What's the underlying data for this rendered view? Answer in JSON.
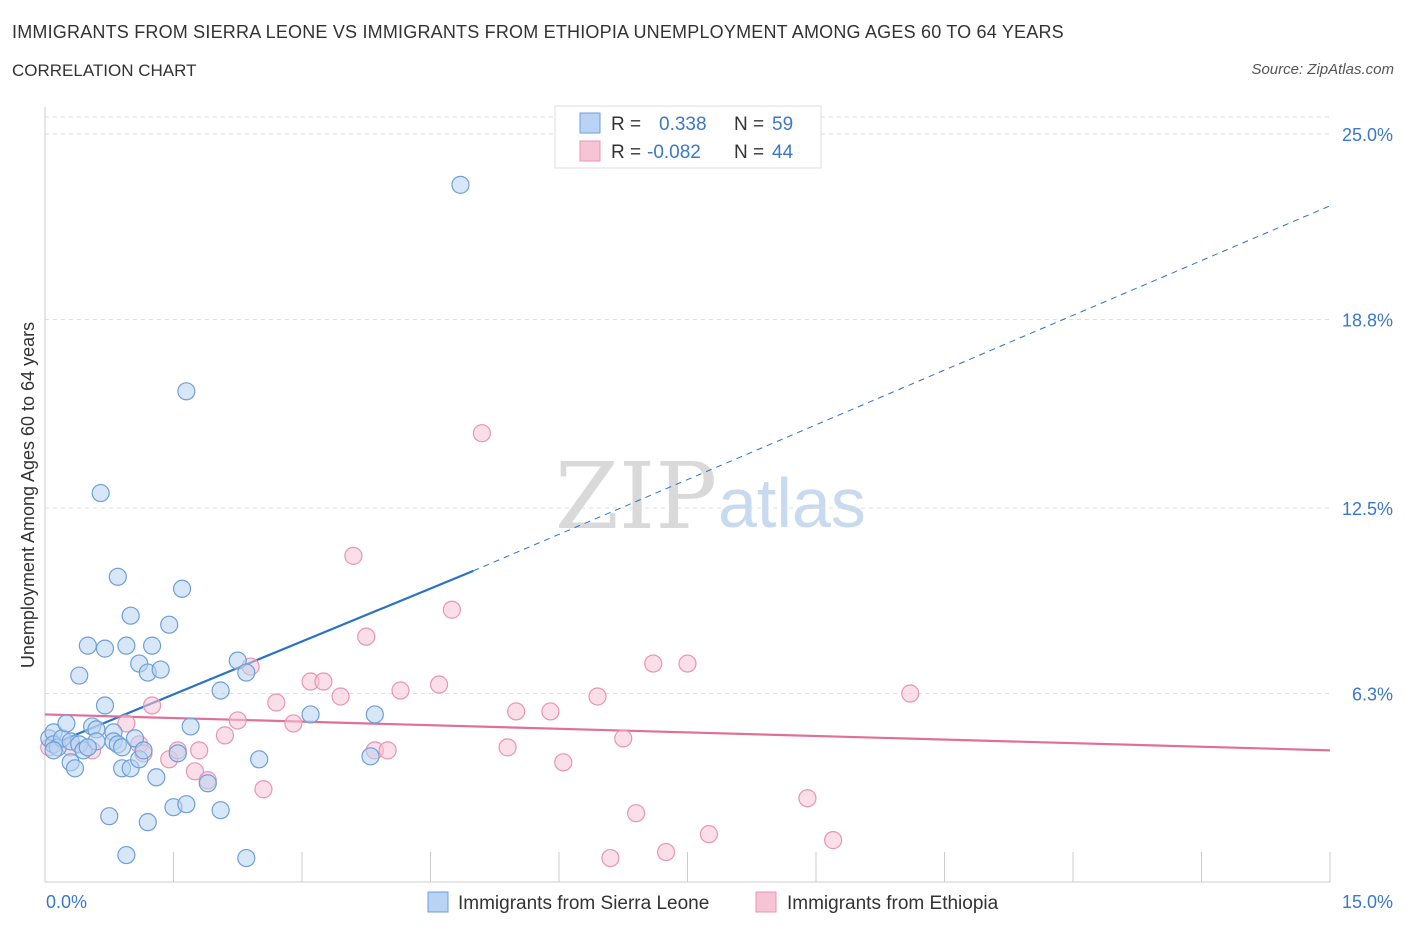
{
  "header": {
    "title": "IMMIGRANTS FROM SIERRA LEONE VS IMMIGRANTS FROM ETHIOPIA UNEMPLOYMENT AMONG AGES 60 TO 64 YEARS",
    "subtitle": "CORRELATION CHART",
    "source": "Source: ZipAtlas.com"
  },
  "watermark": {
    "zip": "ZIP",
    "atlas": "atlas"
  },
  "colors": {
    "blue_fill": "#b8d3f3",
    "blue_stroke": "#6d9fd8",
    "blue_line": "#2a72c9",
    "pink_fill": "#f6c4d5",
    "pink_stroke": "#e994b2",
    "pink_line": "#e07099",
    "grid": "#dddddd",
    "tick_text": "#3a78c9"
  },
  "legend": {
    "rows": [
      {
        "r_label": "R =",
        "r_value": "0.338",
        "n_label": "N =",
        "n_value": "59"
      },
      {
        "r_label": "R =",
        "r_value": "-0.082",
        "n_label": "N =",
        "n_value": "44"
      }
    ]
  },
  "chart_data": {
    "type": "scatter",
    "title": "IMMIGRANTS FROM SIERRA LEONE VS IMMIGRANTS FROM ETHIOPIA UNEMPLOYMENT AMONG AGES 60 TO 64 YEARS",
    "xlabel": "",
    "ylabel": "Unemployment Among Ages 60 to 64 years",
    "xlim": [
      0,
      15
    ],
    "ylim": [
      0,
      25
    ],
    "x_tick_labels": [
      {
        "value": 0,
        "label": "0.0%"
      },
      {
        "value": 15,
        "label": "15.0%"
      }
    ],
    "y_tick_labels": [
      {
        "value": 6.3,
        "label": "6.3%"
      },
      {
        "value": 12.5,
        "label": "12.5%"
      },
      {
        "value": 18.8,
        "label": "18.8%"
      },
      {
        "value": 25.0,
        "label": "25.0%"
      }
    ],
    "grid": true,
    "series": [
      {
        "name": "Immigrants from Sierra Leone",
        "color": "#b8d3f3",
        "trend": {
          "x0": 0.0,
          "y0": 4.5,
          "x1": 5.0,
          "y1": 10.4,
          "dash_to_x": 15.0,
          "dash_to_y": 22.6
        },
        "points": [
          [
            0.05,
            4.8
          ],
          [
            0.1,
            5.0
          ],
          [
            0.1,
            4.6
          ],
          [
            0.15,
            4.5
          ],
          [
            0.2,
            4.8
          ],
          [
            0.25,
            5.3
          ],
          [
            0.3,
            4.7
          ],
          [
            0.3,
            4.0
          ],
          [
            0.35,
            3.8
          ],
          [
            0.4,
            4.6
          ],
          [
            0.4,
            6.9
          ],
          [
            0.45,
            4.4
          ],
          [
            0.5,
            7.9
          ],
          [
            0.55,
            5.2
          ],
          [
            0.6,
            5.1
          ],
          [
            0.6,
            4.7
          ],
          [
            0.65,
            13.0
          ],
          [
            0.7,
            5.9
          ],
          [
            0.7,
            7.8
          ],
          [
            0.75,
            2.2
          ],
          [
            0.8,
            5.0
          ],
          [
            0.8,
            4.7
          ],
          [
            0.85,
            10.2
          ],
          [
            0.85,
            4.6
          ],
          [
            0.9,
            3.8
          ],
          [
            0.9,
            4.5
          ],
          [
            0.95,
            7.9
          ],
          [
            0.95,
            0.9
          ],
          [
            1.0,
            8.9
          ],
          [
            1.0,
            3.8
          ],
          [
            1.05,
            4.8
          ],
          [
            1.1,
            7.3
          ],
          [
            1.1,
            4.1
          ],
          [
            1.15,
            4.4
          ],
          [
            1.2,
            2.0
          ],
          [
            1.2,
            7.0
          ],
          [
            1.25,
            7.9
          ],
          [
            1.3,
            3.5
          ],
          [
            1.35,
            7.1
          ],
          [
            1.45,
            8.6
          ],
          [
            1.5,
            2.5
          ],
          [
            1.55,
            4.3
          ],
          [
            1.6,
            9.8
          ],
          [
            1.65,
            2.6
          ],
          [
            1.7,
            5.2
          ],
          [
            1.65,
            16.4
          ],
          [
            1.9,
            3.3
          ],
          [
            2.05,
            2.4
          ],
          [
            2.05,
            6.4
          ],
          [
            2.25,
            7.4
          ],
          [
            2.35,
            7.0
          ],
          [
            2.35,
            0.8
          ],
          [
            2.5,
            4.1
          ],
          [
            3.1,
            5.6
          ],
          [
            3.8,
            4.2
          ],
          [
            3.85,
            5.6
          ],
          [
            4.85,
            23.3
          ],
          [
            0.1,
            4.4
          ],
          [
            0.5,
            4.5
          ]
        ]
      },
      {
        "name": "Immigrants from Ethiopia",
        "color": "#f6c4d5",
        "trend": {
          "x0": 0.0,
          "y0": 5.6,
          "x1": 15.0,
          "y1": 4.4
        },
        "points": [
          [
            0.05,
            4.5
          ],
          [
            0.3,
            4.5
          ],
          [
            0.55,
            4.4
          ],
          [
            0.95,
            5.3
          ],
          [
            1.1,
            4.6
          ],
          [
            1.15,
            4.3
          ],
          [
            1.25,
            5.9
          ],
          [
            1.45,
            4.1
          ],
          [
            1.55,
            4.4
          ],
          [
            1.75,
            3.7
          ],
          [
            1.9,
            3.4
          ],
          [
            2.1,
            4.9
          ],
          [
            2.25,
            5.4
          ],
          [
            2.4,
            7.2
          ],
          [
            2.55,
            3.1
          ],
          [
            2.7,
            6.0
          ],
          [
            2.9,
            5.3
          ],
          [
            3.1,
            6.7
          ],
          [
            3.25,
            6.7
          ],
          [
            3.45,
            6.2
          ],
          [
            3.6,
            10.9
          ],
          [
            3.75,
            8.2
          ],
          [
            3.85,
            4.4
          ],
          [
            4.0,
            4.4
          ],
          [
            4.15,
            6.4
          ],
          [
            4.6,
            6.6
          ],
          [
            4.75,
            9.1
          ],
          [
            5.1,
            15.0
          ],
          [
            5.4,
            4.5
          ],
          [
            5.5,
            5.7
          ],
          [
            5.9,
            5.7
          ],
          [
            6.05,
            4.0
          ],
          [
            6.45,
            6.2
          ],
          [
            6.6,
            0.8
          ],
          [
            6.75,
            4.8
          ],
          [
            6.9,
            2.3
          ],
          [
            7.1,
            7.3
          ],
          [
            7.25,
            1.0
          ],
          [
            7.5,
            7.3
          ],
          [
            7.75,
            1.6
          ],
          [
            8.9,
            2.8
          ],
          [
            9.2,
            1.4
          ],
          [
            10.1,
            6.3
          ],
          [
            1.8,
            4.4
          ]
        ]
      }
    ]
  },
  "bottom_legend": {
    "items": [
      {
        "label": "Immigrants from Sierra Leone"
      },
      {
        "label": "Immigrants from Ethiopia"
      }
    ]
  }
}
